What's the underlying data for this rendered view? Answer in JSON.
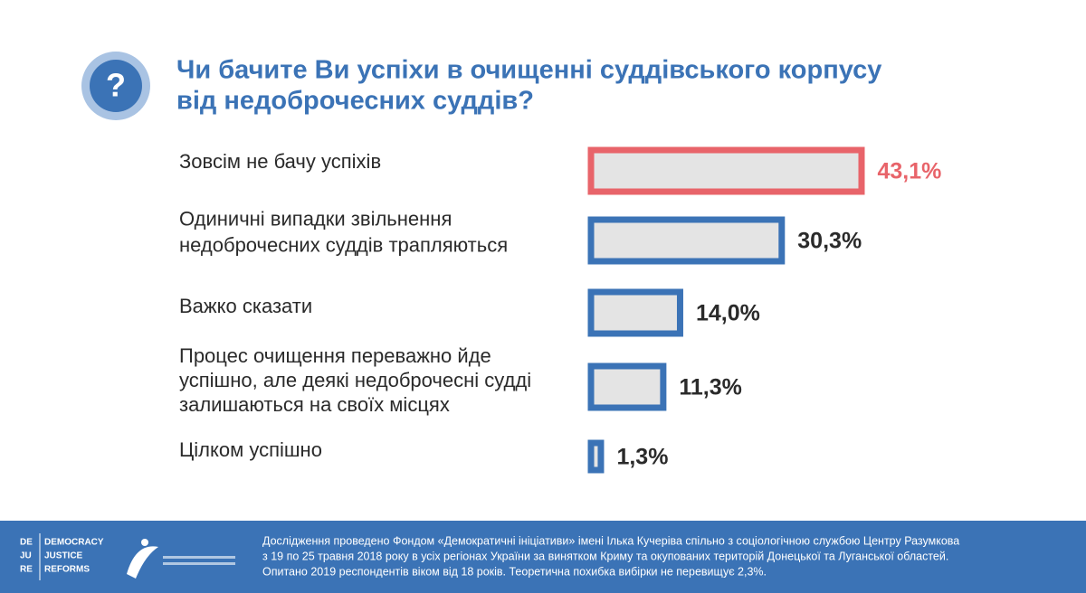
{
  "chart_data": {
    "type": "bar",
    "orientation": "horizontal",
    "title": [
      "Чи бачите Ви успіхи в очищенні суддівського корпусу",
      "від недоброчесних суддів?"
    ],
    "categories": [
      [
        "Зовсім не бачу успіхів"
      ],
      [
        "Одиничні випадки звільнення",
        "недоброчесних суддів трапляються"
      ],
      [
        "Важко сказати"
      ],
      [
        "Процес очищення переважно йде",
        "успішно, але деякі недоброчесні судді",
        "залишаються на своїх місцях"
      ],
      [
        "Цілком успішно"
      ]
    ],
    "values": [
      43.1,
      30.3,
      14.0,
      11.3,
      1.3
    ],
    "value_labels": [
      "43,1%",
      "30,3%",
      "14,0%",
      "11,3%",
      "1,3%"
    ],
    "colors": [
      "#e8646a",
      "#3b73b6",
      "#3b73b6",
      "#3b73b6",
      "#3b73b6"
    ],
    "label_colors": [
      "#e8646a",
      "#2a2a2a",
      "#2a2a2a",
      "#2a2a2a",
      "#2a2a2a"
    ],
    "bar_fill": "#e4e4e4",
    "logo": [
      "DE",
      "JU",
      "RE",
      "DEMOCRACY",
      "JUSTICE",
      "REFORMS"
    ],
    "notes": [
      "Дослідження проведено Фондом «Демократичні ініціативи» імені Ілька Кучеріва спільно з соціологічною службою Центру Разумкова",
      "з 19 по 25 травня 2018 року в усіх регіонах України за винятком Криму та окупованих територій Донецької та Луганської областей.",
      "Опитано 2019 респондентів віком від 18 років. Теоретична похибка вибірки не перевищує 2,3%."
    ]
  }
}
